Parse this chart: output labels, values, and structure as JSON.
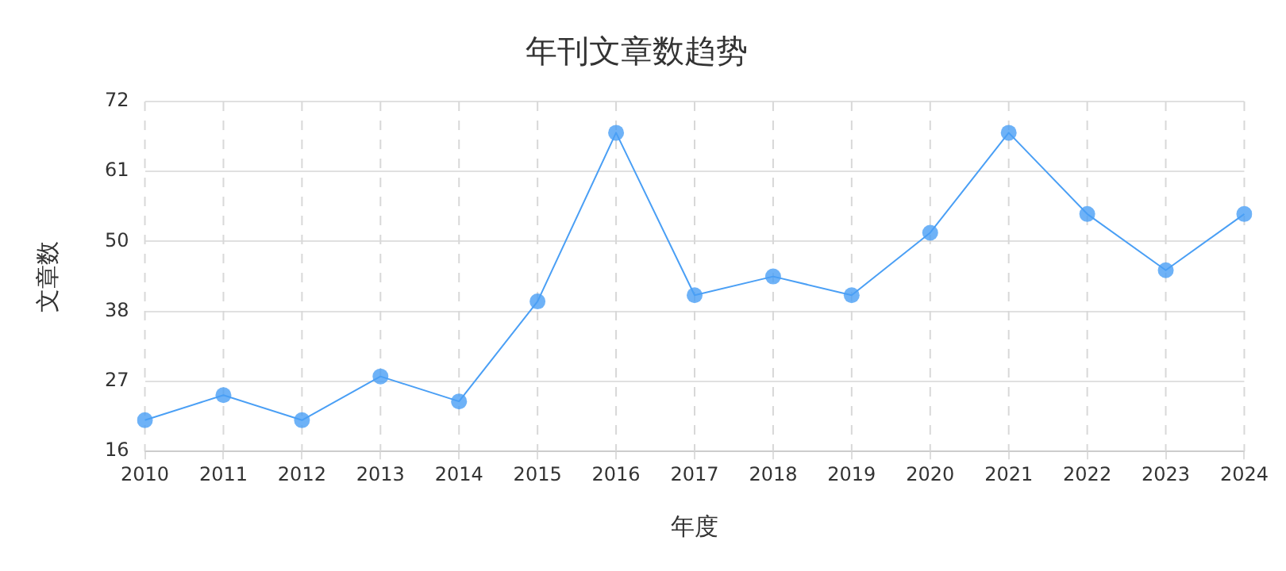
{
  "chart_data": {
    "type": "line",
    "title": "年刊文章数趋势",
    "xlabel": "年度",
    "ylabel": "文章数",
    "categories": [
      "2010",
      "2011",
      "2012",
      "2013",
      "2014",
      "2015",
      "2016",
      "2017",
      "2018",
      "2019",
      "2020",
      "2021",
      "2022",
      "2023",
      "2024"
    ],
    "series": [
      {
        "color": "#4a9ff5",
        "values": [
          21,
          25,
          21,
          28,
          24,
          40,
          67,
          41,
          44,
          41,
          51,
          67,
          54,
          45,
          54
        ]
      }
    ],
    "ylim": [
      16,
      72
    ],
    "yticks": [
      16,
      {
        "value": 27.2,
        "label": "27"
      },
      {
        "value": 38.4,
        "label": "38"
      },
      {
        "value": 49.6,
        "label": "50"
      },
      {
        "value": 60.8,
        "label": "61"
      },
      72
    ],
    "grid": true,
    "legend": false,
    "marker": "circle",
    "line_style": "solid"
  }
}
